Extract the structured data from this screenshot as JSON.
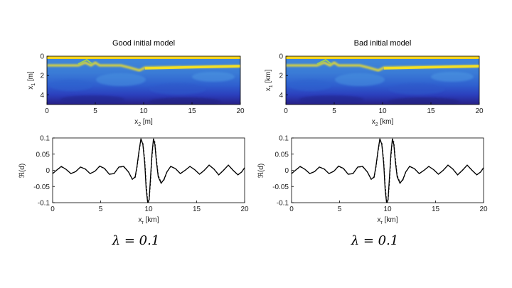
{
  "colors": {
    "water": "#f3d21a",
    "background": "#3f86da",
    "reflector": "#f2dd22",
    "deep": "#2b3fbd",
    "deepest": "#271f86",
    "trace_solid": "#000000",
    "trace_dashed": "#000000"
  },
  "chart_data": [
    {
      "type": "heatmap",
      "title": "Good initial model",
      "xlabel_main": "x",
      "xlabel_sub": "2",
      "xlabel_unit": "[m]",
      "ylabel_main": "x",
      "ylabel_sub": "1",
      "ylabel_unit": "[m]",
      "xlim": [
        0,
        20
      ],
      "ylim": [
        5,
        0
      ],
      "xticks": [
        0,
        5,
        10,
        15,
        20
      ],
      "yticks": [
        0,
        2,
        4
      ],
      "colormap": "parula",
      "reflector_depth_left": 0.9,
      "reflector_depth_right": 1.1,
      "reflector_step_x": 10
    },
    {
      "type": "heatmap",
      "title": "Bad initial model",
      "xlabel_main": "x",
      "xlabel_sub": "2",
      "xlabel_unit": "[km]",
      "ylabel_main": "x",
      "ylabel_sub": "1",
      "ylabel_unit": "[km]",
      "xlim": [
        0,
        20
      ],
      "ylim": [
        5,
        0
      ],
      "xticks": [
        0,
        5,
        10,
        15,
        20
      ],
      "yticks": [
        0,
        2,
        4
      ],
      "colormap": "parula",
      "reflector_depth_left": 0.9,
      "reflector_depth_right": 1.1,
      "reflector_step_x": 10
    },
    {
      "type": "line",
      "xlabel_main": "x",
      "xlabel_sub": "r",
      "xlabel_unit": "[km]",
      "ylabel": "ℜ(d)",
      "xlim": [
        0,
        20
      ],
      "ylim": [
        -0.1,
        0.1
      ],
      "xticks": [
        0,
        5,
        10,
        15,
        20
      ],
      "yticks": [
        0.1,
        0.05,
        0,
        -0.05,
        -0.1
      ],
      "yticklabels": [
        "0.1",
        "0.05",
        "0",
        "-0.05",
        "-0.1"
      ],
      "series": [
        {
          "style": "solid",
          "x": [
            0,
            0.4,
            0.9,
            1.4,
            1.9,
            2.4,
            2.9,
            3.4,
            3.9,
            4.4,
            4.9,
            5.4,
            5.9,
            6.4,
            6.9,
            7.4,
            7.9,
            8.3,
            8.6,
            8.8,
            9.0,
            9.2,
            9.4,
            9.6,
            9.75,
            9.9,
            10.05,
            10.2,
            10.35,
            10.5,
            10.65,
            10.8,
            11.0,
            11.3,
            11.6,
            11.9,
            12.3,
            12.8,
            13.3,
            13.8,
            14.3,
            14.8,
            15.3,
            15.8,
            16.3,
            16.8,
            17.3,
            17.8,
            18.3,
            18.8,
            19.3,
            19.7,
            20.0
          ],
          "y": [
            -0.01,
            0.0,
            0.012,
            0.003,
            -0.01,
            -0.004,
            0.01,
            0.004,
            -0.01,
            -0.003,
            0.013,
            0.006,
            -0.012,
            -0.01,
            0.01,
            0.012,
            -0.005,
            -0.028,
            -0.02,
            0.015,
            0.06,
            0.098,
            0.08,
            0.02,
            -0.06,
            -0.1,
            -0.09,
            -0.02,
            0.05,
            0.098,
            0.08,
            0.03,
            -0.02,
            -0.04,
            -0.028,
            -0.005,
            0.012,
            0.005,
            -0.01,
            0.0,
            0.012,
            0.002,
            -0.012,
            0.0,
            0.016,
            0.004,
            -0.014,
            0.0,
            0.016,
            0.0,
            -0.014,
            -0.005,
            0.008
          ]
        },
        {
          "style": "dashed",
          "x": [
            0,
            0.4,
            0.9,
            1.4,
            1.9,
            2.4,
            2.9,
            3.4,
            3.9,
            4.4,
            4.9,
            5.4,
            5.9,
            6.4,
            6.9,
            7.4,
            7.9,
            8.3,
            8.6,
            8.8,
            9.0,
            9.2,
            9.4,
            9.6,
            9.75,
            9.9,
            10.05,
            10.2,
            10.35,
            10.5,
            10.65,
            10.8,
            11.0,
            11.3,
            11.6,
            11.9,
            12.3,
            12.8,
            13.3,
            13.8,
            14.3,
            14.8,
            15.3,
            15.8,
            16.3,
            16.8,
            17.3,
            17.8,
            18.3,
            18.8,
            19.3,
            19.7,
            20.0
          ],
          "y": [
            -0.01,
            0.0,
            0.011,
            0.003,
            -0.01,
            -0.004,
            0.01,
            0.004,
            -0.01,
            -0.003,
            0.012,
            0.006,
            -0.012,
            -0.01,
            0.01,
            0.011,
            -0.005,
            -0.027,
            -0.022,
            0.01,
            0.055,
            0.094,
            0.085,
            0.03,
            -0.045,
            -0.095,
            -0.095,
            -0.035,
            0.04,
            0.092,
            0.088,
            0.04,
            -0.015,
            -0.038,
            -0.03,
            -0.006,
            0.012,
            0.005,
            -0.01,
            0.0,
            0.012,
            0.002,
            -0.012,
            0.0,
            0.016,
            0.004,
            -0.014,
            0.0,
            0.016,
            0.0,
            -0.014,
            -0.005,
            0.008
          ]
        }
      ],
      "caption": "λ = 0.1"
    },
    {
      "type": "line",
      "xlabel_main": "x",
      "xlabel_sub": "r",
      "xlabel_unit": "[km]",
      "ylabel": "ℜ(d)",
      "xlim": [
        0,
        20
      ],
      "ylim": [
        -0.1,
        0.1
      ],
      "xticks": [
        0,
        5,
        10,
        15,
        20
      ],
      "yticks": [
        0.1,
        0.05,
        0,
        -0.05,
        -0.1
      ],
      "yticklabels": [
        "0.1",
        "0.05",
        "0",
        "-0.05",
        "-0.1"
      ],
      "series": [
        {
          "style": "solid",
          "x": [
            0,
            0.4,
            0.9,
            1.4,
            1.9,
            2.4,
            2.9,
            3.4,
            3.9,
            4.4,
            4.9,
            5.4,
            5.9,
            6.4,
            6.9,
            7.4,
            7.9,
            8.3,
            8.6,
            8.8,
            9.0,
            9.2,
            9.4,
            9.6,
            9.75,
            9.9,
            10.05,
            10.2,
            10.35,
            10.5,
            10.65,
            10.8,
            11.0,
            11.3,
            11.6,
            11.9,
            12.3,
            12.8,
            13.3,
            13.8,
            14.3,
            14.8,
            15.3,
            15.8,
            16.3,
            16.8,
            17.3,
            17.8,
            18.3,
            18.8,
            19.3,
            19.7,
            20.0
          ],
          "y": [
            -0.01,
            0.0,
            0.012,
            0.003,
            -0.01,
            -0.004,
            0.01,
            0.004,
            -0.01,
            -0.003,
            0.013,
            0.006,
            -0.012,
            -0.01,
            0.01,
            0.012,
            -0.005,
            -0.028,
            -0.02,
            0.015,
            0.06,
            0.098,
            0.08,
            0.02,
            -0.06,
            -0.1,
            -0.09,
            -0.02,
            0.05,
            0.098,
            0.08,
            0.03,
            -0.02,
            -0.04,
            -0.028,
            -0.005,
            0.012,
            0.005,
            -0.01,
            0.0,
            0.012,
            0.002,
            -0.012,
            0.0,
            0.016,
            0.004,
            -0.014,
            0.0,
            0.016,
            0.0,
            -0.014,
            -0.005,
            0.008
          ]
        },
        {
          "style": "dashed",
          "x": [
            0,
            0.4,
            0.9,
            1.4,
            1.9,
            2.4,
            2.9,
            3.4,
            3.9,
            4.4,
            4.9,
            5.4,
            5.9,
            6.4,
            6.9,
            7.4,
            7.9,
            8.3,
            8.6,
            8.8,
            9.0,
            9.2,
            9.4,
            9.6,
            9.75,
            9.9,
            10.05,
            10.2,
            10.35,
            10.5,
            10.65,
            10.8,
            11.0,
            11.3,
            11.6,
            11.9,
            12.3,
            12.8,
            13.3,
            13.8,
            14.3,
            14.8,
            15.3,
            15.8,
            16.3,
            16.8,
            17.3,
            17.8,
            18.3,
            18.8,
            19.3,
            19.7,
            20.0
          ],
          "y": [
            -0.01,
            0.0,
            0.011,
            0.003,
            -0.01,
            -0.004,
            0.01,
            0.004,
            -0.01,
            -0.003,
            0.012,
            0.006,
            -0.012,
            -0.01,
            0.01,
            0.011,
            -0.005,
            -0.027,
            -0.022,
            0.01,
            0.055,
            0.094,
            0.085,
            0.03,
            -0.045,
            -0.095,
            -0.095,
            -0.035,
            0.04,
            0.092,
            0.088,
            0.04,
            -0.015,
            -0.038,
            -0.03,
            -0.006,
            0.012,
            0.005,
            -0.01,
            0.0,
            0.012,
            0.002,
            -0.012,
            0.0,
            0.016,
            0.004,
            -0.014,
            0.0,
            0.016,
            0.0,
            -0.014,
            -0.005,
            0.008
          ]
        }
      ],
      "caption": "λ = 0.1"
    }
  ]
}
